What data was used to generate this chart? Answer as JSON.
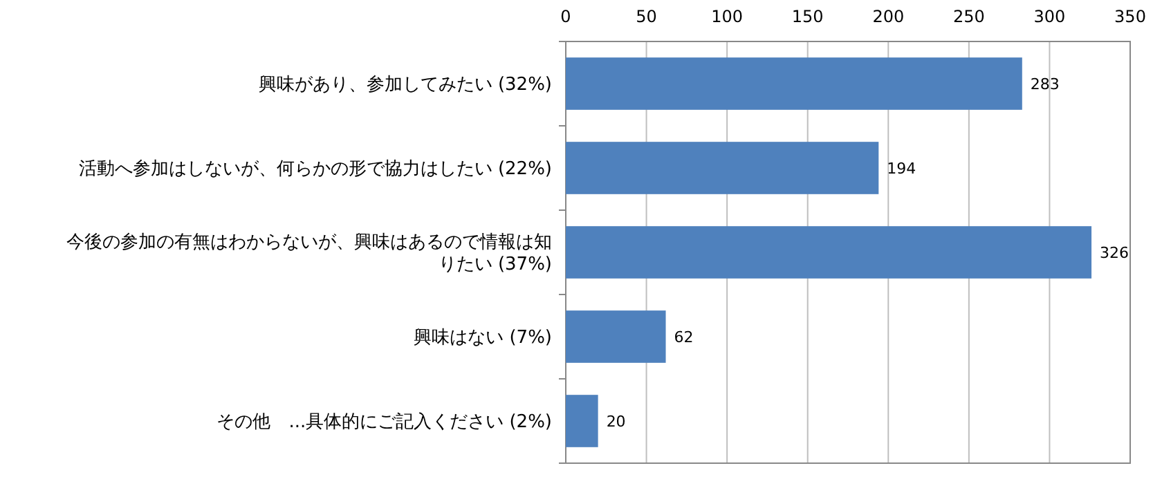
{
  "chart_data": {
    "type": "bar",
    "orientation": "horizontal",
    "categories": [
      "興味があり、参加してみたい (32%)",
      "活動へ参加はしないが、何らかの形で協力はしたい (22%)",
      "今後の参加の有無はわからないが、興味はあるので情報は知りたい (37%)",
      "興味はない (7%)",
      "その他　...具体的にご記入ください (2%)"
    ],
    "values": [
      283,
      194,
      326,
      62,
      20
    ],
    "color": "#4f81bd",
    "xlim": [
      0,
      350
    ],
    "xticks": [
      0,
      50,
      100,
      150,
      200,
      250,
      300,
      350
    ],
    "grid": "x",
    "data_labels": true
  }
}
